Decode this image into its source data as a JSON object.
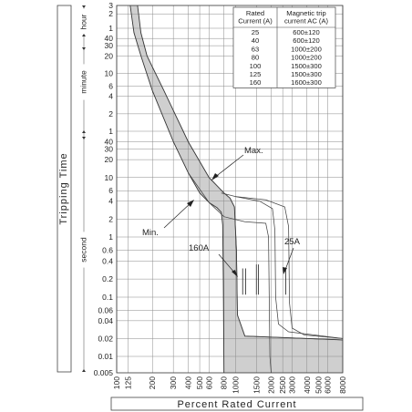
{
  "chart_data": {
    "type": "line",
    "title": "",
    "xlabel": "Percent Rated Current",
    "ylabel": "Tripping Time",
    "x_scale": "log",
    "y_scale": "log",
    "xlim": [
      100,
      8000
    ],
    "x_ticks": [
      100,
      125,
      200,
      300,
      400,
      500,
      600,
      800,
      1000,
      1500,
      2000,
      2500,
      3000,
      4000,
      5000,
      6000,
      8000
    ],
    "y_tick_groups": [
      {
        "unit": "hour",
        "labels": [
          "3",
          "2",
          "1"
        ]
      },
      {
        "unit": "minute",
        "labels": [
          "40",
          "30",
          "20",
          "10",
          "6",
          "4",
          "2",
          "1"
        ]
      },
      {
        "unit": "second",
        "labels": [
          "40",
          "30",
          "20",
          "10",
          "6",
          "4",
          "2",
          "1",
          "0.6",
          "0.4",
          "0.2",
          "0.1",
          "0.06",
          "0.04",
          "0.02",
          "0.01",
          "0.005"
        ]
      }
    ],
    "y_unit_labels": [
      "hour",
      "minute",
      "second"
    ],
    "grid": true,
    "shaded_band": {
      "description": "tripping band between Min. and Max. curves",
      "fill": "#cfcfcf",
      "min_curve": [
        [
          130,
          10800
        ],
        [
          140,
          3000
        ],
        [
          160,
          1200
        ],
        [
          200,
          300
        ],
        [
          300,
          40
        ],
        [
          400,
          12
        ],
        [
          500,
          5.5
        ],
        [
          600,
          3.8
        ],
        [
          700,
          3.1
        ],
        [
          760,
          2.6
        ],
        [
          780,
          1.6
        ],
        [
          790,
          0.2
        ],
        [
          800,
          0.005
        ]
      ],
      "max_curve": [
        [
          150,
          10800
        ],
        [
          160,
          3000
        ],
        [
          180,
          1200
        ],
        [
          250,
          300
        ],
        [
          400,
          40
        ],
        [
          600,
          10
        ],
        [
          800,
          5.5
        ],
        [
          900,
          4.5
        ],
        [
          980,
          3.2
        ],
        [
          1020,
          0.6
        ],
        [
          1040,
          0.05
        ],
        [
          1200,
          0.022
        ],
        [
          8000,
          0.019
        ]
      ],
      "lower_boundary": [
        [
          8000,
          0.005
        ],
        [
          800,
          0.005
        ]
      ]
    },
    "series": [
      {
        "name": "160A",
        "points": [
          [
            600,
            10
          ],
          [
            800,
            5.5
          ],
          [
            900,
            4.5
          ],
          [
            980,
            3.2
          ],
          [
            1020,
            0.6
          ],
          [
            1040,
            0.05
          ],
          [
            1200,
            0.022
          ],
          [
            8000,
            0.019
          ]
        ]
      },
      {
        "name": "Max.",
        "points": [
          [
            760,
            5.5
          ],
          [
            1000,
            4.8
          ],
          [
            1600,
            4.0
          ],
          [
            2050,
            3.0
          ],
          [
            2150,
            1.3
          ],
          [
            2180,
            0.1
          ],
          [
            2300,
            0.035
          ],
          [
            2800,
            0.026
          ],
          [
            8000,
            0.02
          ]
        ]
      },
      {
        "name": "25A",
        "points": [
          [
            1000,
            4.8
          ],
          [
            1800,
            4.2
          ],
          [
            2600,
            3.2
          ],
          [
            2800,
            1.5
          ],
          [
            2850,
            0.08
          ],
          [
            3000,
            0.03
          ],
          [
            3800,
            0.023
          ],
          [
            8000,
            0.02
          ]
        ]
      },
      {
        "name": "",
        "points": [
          [
            400,
            12
          ],
          [
            600,
            3.8
          ],
          [
            800,
            2.2
          ],
          [
            1200,
            1.8
          ],
          [
            1800,
            1.7
          ],
          [
            1900,
            1.0
          ],
          [
            1950,
            0.01
          ],
          [
            2000,
            0.005
          ]
        ]
      }
    ],
    "annotations": [
      "Max.",
      "Min.",
      "160A",
      "25A"
    ],
    "legend_table": {
      "header_left": "Rated\nCurrent (A)",
      "header_right": "Magnetic trip\ncurrent AC (A)",
      "rows": [
        [
          "25",
          "600±120"
        ],
        [
          "40",
          "600±120"
        ],
        [
          "63",
          "1000±200"
        ],
        [
          "80",
          "1000±200"
        ],
        [
          "100",
          "1500±300"
        ],
        [
          "125",
          "1500±300"
        ],
        [
          "160",
          "1600±300"
        ]
      ]
    }
  }
}
